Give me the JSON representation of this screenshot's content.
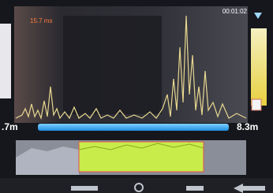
{
  "header": {
    "time": "00:01:02"
  },
  "trace": {
    "label": "15.7 ms"
  },
  "scale": {
    "left": ".7m",
    "right": "8.3m"
  }
}
